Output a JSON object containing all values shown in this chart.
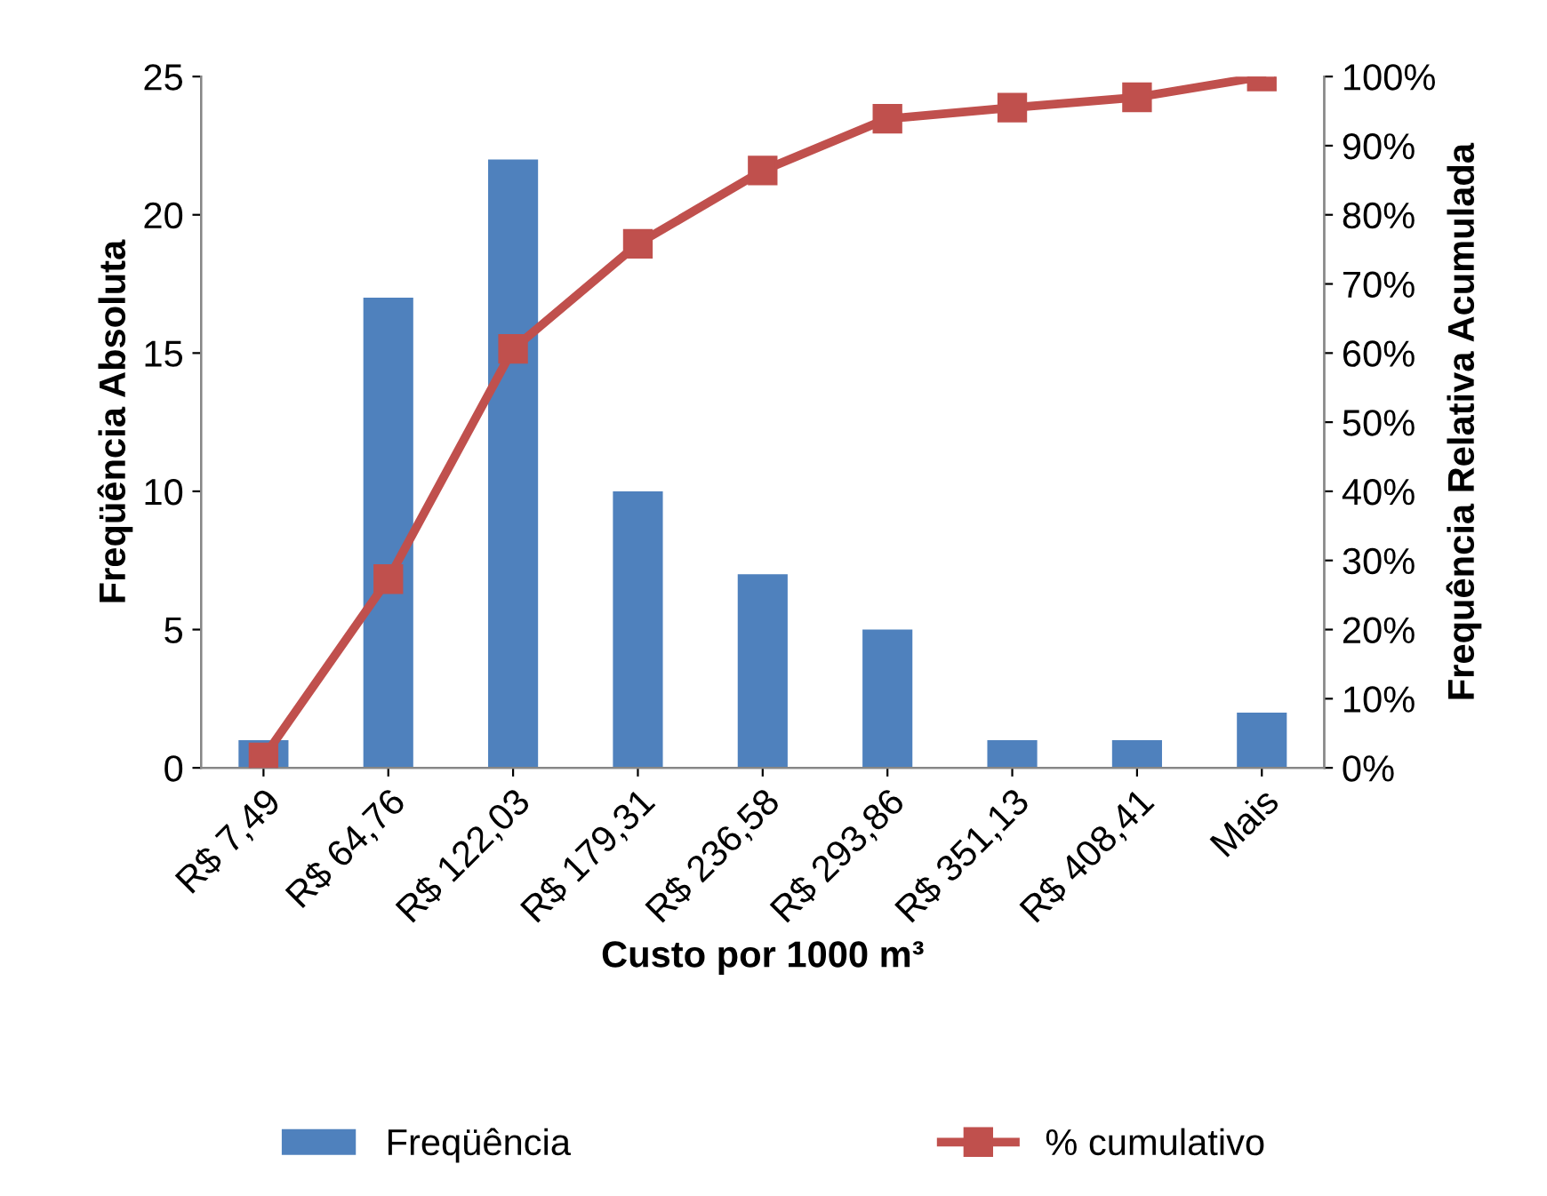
{
  "chart_data": {
    "type": "bar",
    "xlabel": "Custo por 1000 m³",
    "ylabel": "Freqüência Absoluta",
    "y2label": "Frequência Relativa Acumulada",
    "categories": [
      "R$ 7,49",
      "R$ 64,76",
      "R$ 122,03",
      "R$ 179,31",
      "R$ 236,58",
      "R$ 293,86",
      "R$ 351,13",
      "R$ 408,41",
      "Mais"
    ],
    "series": [
      {
        "name": "Freqüência",
        "color": "#4f81bd",
        "values": [
          1,
          17,
          22,
          10,
          7,
          5,
          1,
          1,
          2
        ]
      },
      {
        "name": "% cumulativo",
        "type": "line",
        "axis": "y2",
        "color": "#c0504d",
        "marker": "square",
        "values": [
          1.5,
          27.3,
          60.6,
          75.8,
          86.4,
          93.9,
          95.5,
          97.0,
          100
        ]
      }
    ],
    "ylim": [
      0,
      25
    ],
    "yticks": [
      0,
      5,
      10,
      15,
      20,
      25
    ],
    "y2lim": [
      0,
      100
    ],
    "y2ticks": [
      {
        "value": 0,
        "label": "0%"
      },
      {
        "value": 10,
        "label": "10%"
      },
      {
        "value": 20,
        "label": "20%"
      },
      {
        "value": 30,
        "label": "30%"
      },
      {
        "value": 40,
        "label": "40%"
      },
      {
        "value": 50,
        "label": "50%"
      },
      {
        "value": 60,
        "label": "60%"
      },
      {
        "value": 70,
        "label": "70%"
      },
      {
        "value": 80,
        "label": "80%"
      },
      {
        "value": 90,
        "label": "90%"
      },
      {
        "value": 100,
        "label": "100%"
      }
    ],
    "legend": "bottom",
    "grid": false
  }
}
